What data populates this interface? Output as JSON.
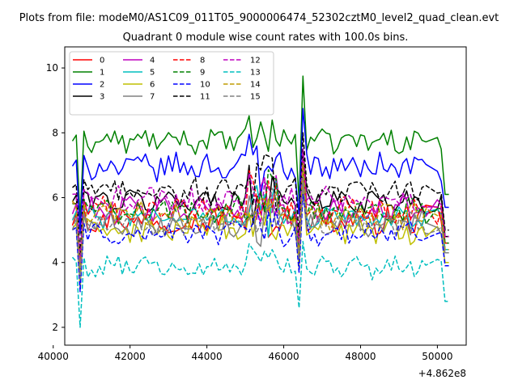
{
  "figure": {
    "suptitle": "Plots from file: modeM0/AS1C09_011T05_9000006474_52302cztM0_level2_quad_clean.evt",
    "title": "Quadrant 0 module wise count rates with 100.0s bins."
  },
  "chart_data": {
    "type": "line",
    "title": "Quadrant 0 module wise count rates with 100.0s bins.",
    "xlabel": "",
    "ylabel": "",
    "x_offset_label": "+4.862e8",
    "xlim": [
      40300,
      50750
    ],
    "ylim": [
      1.45,
      10.65
    ],
    "x_ticks": [
      40000,
      42000,
      44000,
      46000,
      48000,
      50000
    ],
    "x_tick_labels": [
      "40000",
      "42000",
      "44000",
      "46000",
      "48000",
      "50000"
    ],
    "y_ticks": [
      2,
      4,
      6,
      8,
      10
    ],
    "y_tick_labels": [
      "2",
      "4",
      "6",
      "8",
      "10"
    ],
    "grid": false,
    "legend_placement": "top-left",
    "legend_columns": 4,
    "x_start": 40500,
    "x_step": 100,
    "gap_from": 49800,
    "gap_to": 50000,
    "series": [
      {
        "name": "0",
        "color": "#ff0000",
        "dash": "solid",
        "base": 5.3,
        "amp": 0.35,
        "dip": 3.6,
        "late": 0.8
      },
      {
        "name": "1",
        "color": "#008000",
        "dash": "solid",
        "base": 7.75,
        "amp": 0.3,
        "dip": 5.3,
        "late": 1.0
      },
      {
        "name": "2",
        "color": "#0000ff",
        "dash": "solid",
        "base": 6.95,
        "amp": 0.35,
        "dip": 4.9,
        "late": 0.9
      },
      {
        "name": "3",
        "color": "#000000",
        "dash": "solid",
        "base": 5.9,
        "amp": 0.3,
        "dip": 4.0,
        "late": 0.8
      },
      {
        "name": "4",
        "color": "#bf00bf",
        "dash": "solid",
        "base": 5.6,
        "amp": 0.35,
        "dip": 3.8,
        "late": 0.8
      },
      {
        "name": "5",
        "color": "#00bfbf",
        "dash": "solid",
        "base": 5.4,
        "amp": 0.3,
        "dip": 3.6,
        "late": 0.8
      },
      {
        "name": "6",
        "color": "#bfbf00",
        "dash": "solid",
        "base": 5.0,
        "amp": 0.35,
        "dip": 3.2,
        "late": 0.7
      },
      {
        "name": "7",
        "color": "#808080",
        "dash": "solid",
        "base": 5.2,
        "amp": 0.3,
        "dip": 3.5,
        "late": 0.7
      },
      {
        "name": "8",
        "color": "#ff0000",
        "dash": "dashed",
        "base": 5.6,
        "amp": 0.35,
        "dip": 3.8,
        "late": 0.8
      },
      {
        "name": "9",
        "color": "#008000",
        "dash": "dashed",
        "base": 5.6,
        "amp": 0.35,
        "dip": 3.8,
        "late": 0.8
      },
      {
        "name": "10",
        "color": "#0000ff",
        "dash": "dashed",
        "base": 4.9,
        "amp": 0.3,
        "dip": 3.1,
        "late": 0.6
      },
      {
        "name": "11",
        "color": "#000000",
        "dash": "dashed",
        "base": 6.2,
        "amp": 0.35,
        "dip": 4.2,
        "late": 0.9
      },
      {
        "name": "12",
        "color": "#bf00bf",
        "dash": "dashed",
        "base": 5.9,
        "amp": 0.35,
        "dip": 4.0,
        "late": 0.8
      },
      {
        "name": "13",
        "color": "#00bfbf",
        "dash": "dashed",
        "base": 3.85,
        "amp": 0.3,
        "dip": 2.0,
        "late": 0.4
      },
      {
        "name": "14",
        "color": "#bf9b00",
        "dash": "dashed",
        "base": 5.45,
        "amp": 0.35,
        "dip": 3.6,
        "late": 0.8
      },
      {
        "name": "15",
        "color": "#808080",
        "dash": "dashed",
        "base": 5.2,
        "amp": 0.3,
        "dip": 3.5,
        "late": 0.7
      }
    ]
  }
}
